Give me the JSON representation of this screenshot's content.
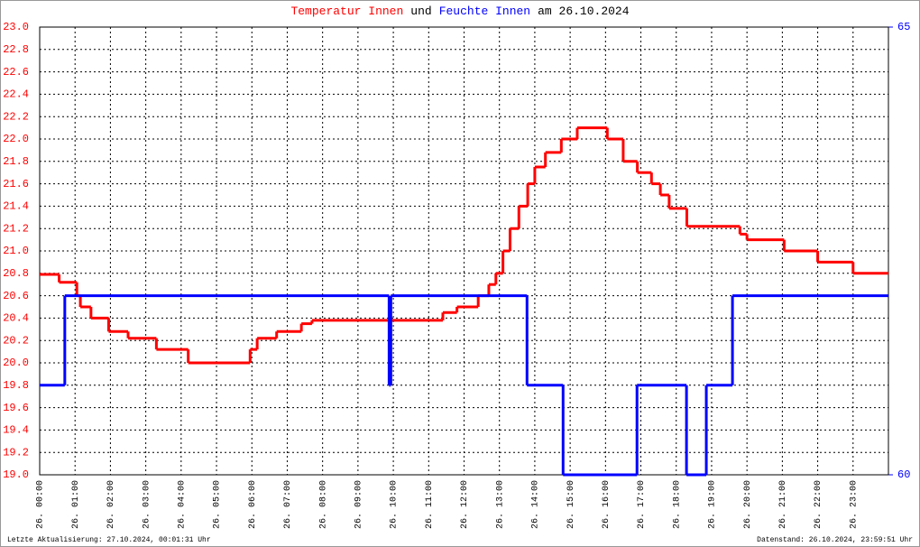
{
  "chart_data": {
    "type": "step-line",
    "title_connector": "und",
    "title_suffix": "am 26.10.2024",
    "footer_left": "Letzte Aktualisierung: 27.10.2024, 00:01:31 Uhr",
    "footer_right": "Datenstand: 26.10.2024, 23:59:51 Uhr",
    "xlim": [
      0,
      24
    ],
    "xticks": [
      {
        "value": 0,
        "label": "26. 00:00"
      },
      {
        "value": 1,
        "label": "26. 01:00"
      },
      {
        "value": 2,
        "label": "26. 02:00"
      },
      {
        "value": 3,
        "label": "26. 03:00"
      },
      {
        "value": 4,
        "label": "26. 04:00"
      },
      {
        "value": 5,
        "label": "26. 05:00"
      },
      {
        "value": 6,
        "label": "26. 06:00"
      },
      {
        "value": 7,
        "label": "26. 07:00"
      },
      {
        "value": 8,
        "label": "26. 08:00"
      },
      {
        "value": 9,
        "label": "26. 09:00"
      },
      {
        "value": 10,
        "label": "26. 10:00"
      },
      {
        "value": 11,
        "label": "26. 11:00"
      },
      {
        "value": 12,
        "label": "26. 12:00"
      },
      {
        "value": 13,
        "label": "26. 13:00"
      },
      {
        "value": 14,
        "label": "26. 14:00"
      },
      {
        "value": 15,
        "label": "26. 15:00"
      },
      {
        "value": 16,
        "label": "26. 16:00"
      },
      {
        "value": 17,
        "label": "26. 17:00"
      },
      {
        "value": 18,
        "label": "26. 18:00"
      },
      {
        "value": 19,
        "label": "26. 19:00"
      },
      {
        "value": 20,
        "label": "26. 20:00"
      },
      {
        "value": 21,
        "label": "26. 21:00"
      },
      {
        "value": 22,
        "label": "26. 22:00"
      },
      {
        "value": 23,
        "label": "26. 23:00"
      }
    ],
    "ylim": [
      19,
      23
    ],
    "yticks": [
      {
        "value": 19,
        "label": "19.0"
      },
      19.2,
      19.4,
      19.6,
      19.8,
      {
        "value": 20,
        "label": "20.0"
      },
      20.2,
      20.4,
      20.6,
      20.8,
      {
        "value": 21,
        "label": "21.0"
      },
      21.2,
      21.4,
      21.6,
      21.8,
      {
        "value": 22,
        "label": "22.0"
      },
      22.2,
      22.4,
      22.6,
      22.8,
      {
        "value": 23,
        "label": "23.0"
      }
    ],
    "y2lim": [
      60,
      65
    ],
    "y2ticks": [
      60,
      65
    ],
    "grid": true,
    "series": [
      {
        "name": "Temperatur Innen",
        "color": "#ff0000",
        "axis": "y",
        "x": [
          0,
          0.55,
          1.05,
          1.15,
          1.45,
          1.95,
          2.5,
          3.3,
          4.2,
          5.95,
          6.15,
          6.7,
          7.4,
          7.7,
          11.4,
          11.8,
          12.4,
          12.7,
          12.9,
          13.1,
          13.3,
          13.55,
          13.8,
          14.0,
          14.3,
          14.75,
          15.2,
          16.05,
          16.5,
          16.9,
          17.3,
          17.55,
          17.8,
          18.3,
          19.8,
          20.0,
          21.05,
          22.0,
          23.0,
          24
        ],
        "values": [
          20.79,
          20.72,
          20.6,
          20.5,
          20.4,
          20.28,
          20.22,
          20.12,
          20.0,
          20.12,
          20.22,
          20.28,
          20.35,
          20.38,
          20.45,
          20.5,
          20.6,
          20.7,
          20.8,
          21.0,
          21.2,
          21.4,
          21.6,
          21.75,
          21.88,
          22.0,
          22.1,
          22.0,
          21.8,
          21.7,
          21.6,
          21.5,
          21.38,
          21.22,
          21.15,
          21.1,
          21.0,
          20.9,
          20.8,
          20.8
        ]
      },
      {
        "name": "Feuchte Innen",
        "color": "#0000ff",
        "axis": "y2",
        "x": [
          0,
          0.71,
          9.88,
          9.93,
          13.78,
          14.8,
          16.89,
          18.29,
          18.85,
          19.59,
          24
        ],
        "values": [
          61,
          62,
          61,
          62,
          61,
          60,
          61,
          60,
          61,
          62,
          62
        ]
      }
    ]
  }
}
